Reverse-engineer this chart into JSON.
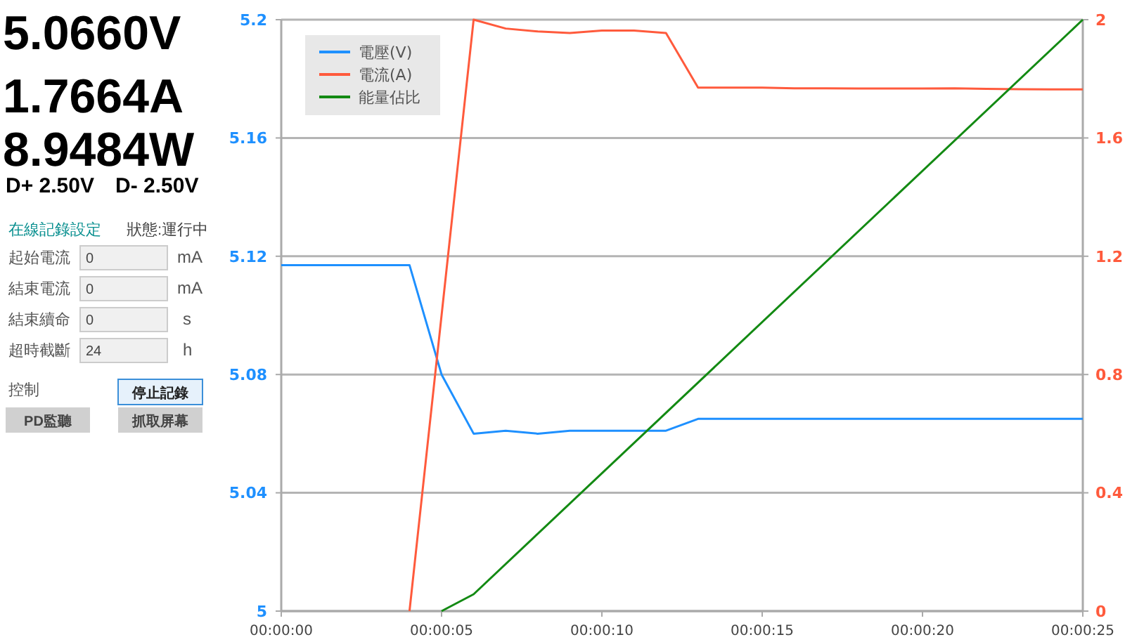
{
  "chart_data": [
    {
      "type": "other",
      "annotations": [
        "5.0660V",
        "1.7664A",
        "8.9484W",
        "D+ 2.50V",
        "D- 2.50V",
        "在線記錄設定",
        "狀態:運行中",
        "起始電流",
        "0",
        "mA",
        "結束電流",
        "0",
        "mA",
        "結束續命",
        "0",
        "s",
        "超時截斷",
        "24",
        "h",
        "控制",
        "停止記錄",
        "PD監聽",
        "抓取屏幕"
      ]
    },
    {
      "type": "line",
      "xlim": [
        0,
        25
      ],
      "xticks": [
        {
          "value": 0,
          "label": "00:00:00"
        },
        {
          "value": 5,
          "label": "00:00:05"
        },
        {
          "value": 10,
          "label": "00:00:10"
        },
        {
          "value": 15,
          "label": "00:00:15"
        },
        {
          "value": 20,
          "label": "00:00:20"
        },
        {
          "value": 25,
          "label": "00:00:25"
        }
      ],
      "ylim": [
        5,
        5.2
      ],
      "yticks": [
        5,
        5.04,
        5.08,
        5.12,
        5.16,
        5.2
      ],
      "y2lim": [
        0,
        2
      ],
      "y2ticks": [
        0,
        0.4,
        0.8,
        1.2,
        1.6,
        2
      ],
      "grid": "y",
      "legend": "top left",
      "series": [
        {
          "name": "電壓(V)",
          "color": "#1e90ff",
          "axis": "y",
          "x": [
            0,
            1,
            2,
            3,
            4,
            5,
            6,
            7,
            8,
            9,
            10,
            11,
            12,
            13,
            14,
            15,
            16,
            17,
            18,
            19,
            20,
            21,
            22,
            23,
            24,
            25
          ],
          "values": [
            5.117,
            5.117,
            5.117,
            5.117,
            5.117,
            5.08,
            5.06,
            5.061,
            5.06,
            5.061,
            5.061,
            5.061,
            5.061,
            5.065,
            5.065,
            5.065,
            5.065,
            5.065,
            5.065,
            5.065,
            5.065,
            5.065,
            5.065,
            5.065,
            5.065,
            5.065
          ]
        },
        {
          "name": "電流(A)",
          "color": "#ff5a3c",
          "axis": "y2",
          "x": [
            4,
            5,
            6,
            7,
            8,
            9,
            10,
            11,
            12,
            13,
            14,
            15,
            16,
            17,
            18,
            19,
            20,
            21,
            22,
            23,
            24,
            25
          ],
          "values": [
            0,
            1.0,
            2.0,
            1.97,
            1.96,
            1.955,
            1.963,
            1.963,
            1.955,
            1.77,
            1.77,
            1.77,
            1.768,
            1.768,
            1.767,
            1.767,
            1.767,
            1.768,
            1.766,
            1.765,
            1.764,
            1.764
          ]
        },
        {
          "name": "能量佔比",
          "color": "#138a13",
          "axis": "y2",
          "x": [
            5,
            6,
            25
          ],
          "values": [
            0,
            0.057,
            2
          ]
        }
      ]
    }
  ]
}
